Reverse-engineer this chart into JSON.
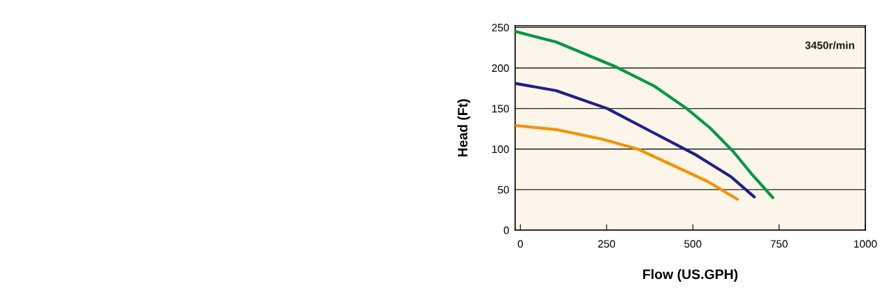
{
  "chart_data": {
    "type": "line",
    "xlabel": "Flow (US.GPH)",
    "ylabel": "Head (Ft)",
    "annotations": [
      "3450r/min"
    ],
    "xlim": [
      -15,
      1000
    ],
    "xticks": [
      0,
      250,
      500,
      750,
      1000
    ],
    "ylim": [
      0,
      252
    ],
    "yticks": [
      0,
      50,
      100,
      150,
      200,
      250
    ],
    "grid": "y",
    "marker": "none",
    "line_style": "solid",
    "series": [
      {
        "color": "#f39200",
        "x": [
          -15,
          104,
          239,
          340,
          442,
          543,
          629
        ],
        "values": [
          129,
          124,
          112,
          100,
          80,
          60,
          38
        ]
      },
      {
        "color": "#1d2088",
        "x": [
          -15,
          104,
          252,
          373,
          508,
          610,
          678
        ],
        "values": [
          181,
          172,
          150,
          123,
          93,
          66,
          41
        ]
      },
      {
        "color": "#009944",
        "x": [
          -15,
          104,
          279,
          387,
          482,
          550,
          617,
          671,
          732
        ],
        "values": [
          245,
          232,
          201,
          178,
          150,
          126,
          97,
          69,
          40
        ]
      }
    ]
  }
}
